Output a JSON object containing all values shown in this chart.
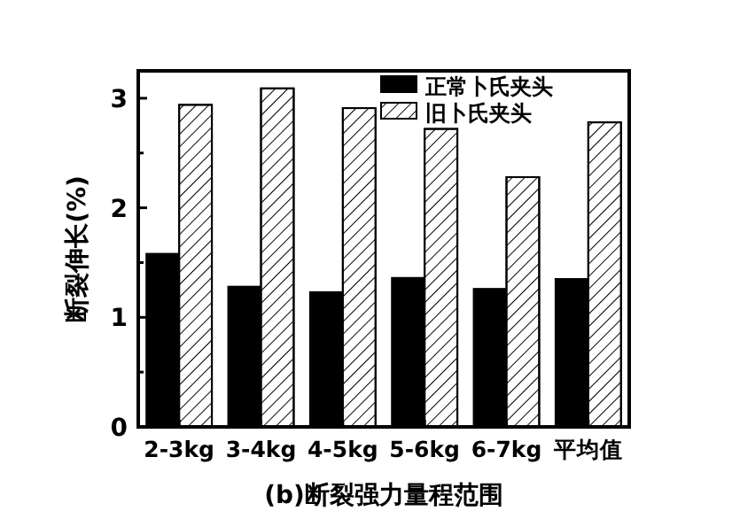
{
  "chart_data": {
    "type": "bar",
    "xlabel": "(b)断裂强力量程范围",
    "ylabel": "断裂伸长(%)",
    "categories": [
      "2-3kg",
      "3-4kg",
      "4-5kg",
      "5-6kg",
      "6-7kg",
      "平均值"
    ],
    "series": [
      {
        "name": "正常卜氏夹头",
        "color": "#000000",
        "values": [
          1.58,
          1.28,
          1.23,
          1.36,
          1.26,
          1.35
        ]
      },
      {
        "name": "旧卜氏夹头",
        "color": "#ffffff",
        "values": [
          2.94,
          3.09,
          2.91,
          2.72,
          2.28,
          2.78
        ]
      }
    ],
    "ylim": [
      0,
      3.25
    ],
    "yticks": [
      0,
      {
        "value": 0.5,
        "label": null
      },
      1,
      {
        "value": 1.5,
        "label": null
      },
      2,
      {
        "value": 2.5,
        "label": null
      },
      3
    ],
    "legend": "top right",
    "grid": false
  }
}
